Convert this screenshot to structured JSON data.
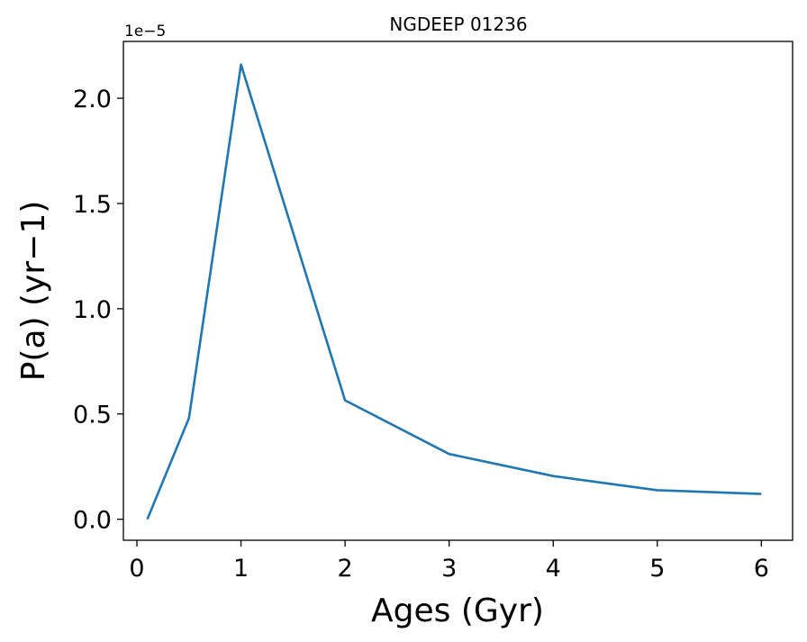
{
  "chart_data": {
    "type": "line",
    "title": "NGDEEP 01236",
    "xlabel": "Ages (Gyr)",
    "ylabel": "P(a) (yr−1)",
    "y_offset_label": "1e−5",
    "xlim": [
      -0.13,
      6.3
    ],
    "ylim": [
      -0.1,
      2.27
    ],
    "x_ticks": [
      0,
      1,
      2,
      3,
      4,
      5,
      6
    ],
    "x_tick_labels": [
      "0",
      "1",
      "2",
      "3",
      "4",
      "5",
      "6"
    ],
    "y_ticks": [
      0.0,
      0.5,
      1.0,
      1.5,
      2.0
    ],
    "y_tick_labels": [
      "0.0",
      "0.5",
      "1.0",
      "1.5",
      "2.0"
    ],
    "grid": false,
    "legend": "none",
    "series": [
      {
        "color": "#1f77b4",
        "x": [
          0.1,
          0.5,
          1.0,
          2.0,
          3.0,
          4.0,
          5.0,
          6.0
        ],
        "y": [
          0.0,
          0.48,
          2.16,
          0.565,
          0.31,
          0.205,
          0.138,
          0.12
        ]
      }
    ]
  }
}
